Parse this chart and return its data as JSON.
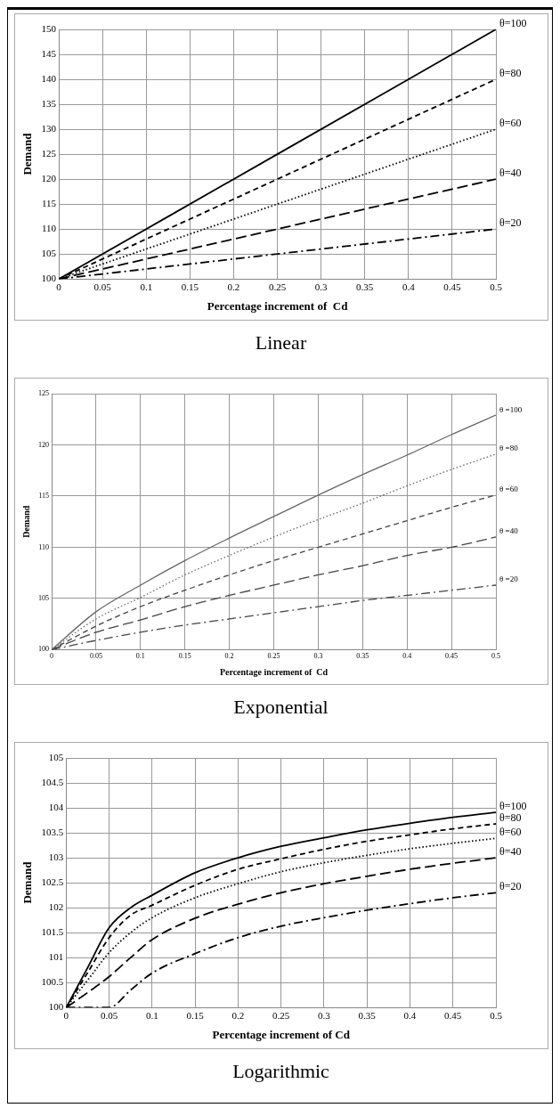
{
  "chart_data": [
    {
      "type": "line",
      "title": "Linear",
      "xlabel": "Percentage increment of  Cd",
      "ylabel": "Demand",
      "x": [
        0,
        0.25,
        0.5
      ],
      "xlim": [
        0,
        0.5
      ],
      "xticks": [
        0,
        0.05,
        0.1,
        0.15,
        0.2,
        0.25,
        0.3,
        0.35,
        0.4,
        0.45,
        0.5
      ],
      "ylim": [
        100,
        150
      ],
      "yticks": [
        100,
        105,
        110,
        115,
        120,
        125,
        130,
        135,
        140,
        145,
        150
      ],
      "grid": true,
      "legend": false,
      "series": [
        {
          "name": "θ=100",
          "color": "#000000",
          "line_style": "solid",
          "values": [
            100,
            125,
            150
          ]
        },
        {
          "name": "θ=80",
          "color": "#000000",
          "line_style": "dashed",
          "values": [
            100,
            120,
            140
          ]
        },
        {
          "name": "θ=60",
          "color": "#000000",
          "line_style": "dotted",
          "values": [
            100,
            115,
            130
          ]
        },
        {
          "name": "θ=40",
          "color": "#000000",
          "line_style": "dashed",
          "values": [
            100,
            110,
            120
          ]
        },
        {
          "name": "θ=20",
          "color": "#000000",
          "line_style": "dashdot",
          "values": [
            100,
            105,
            110
          ]
        }
      ]
    },
    {
      "type": "line",
      "title": "Exponential",
      "xlabel": "Percentage increment of  Cd",
      "ylabel": "Demand",
      "x": [
        0,
        0.05,
        0.1,
        0.15,
        0.2,
        0.25,
        0.3,
        0.35,
        0.4,
        0.45,
        0.5
      ],
      "xlim": [
        0,
        0.5
      ],
      "xticks": [
        0,
        0.05,
        0.1,
        0.15,
        0.2,
        0.25,
        0.3,
        0.35,
        0.4,
        0.45,
        0.5
      ],
      "ylim": [
        100,
        125
      ],
      "yticks": [
        100,
        105,
        110,
        115,
        120,
        125
      ],
      "grid": true,
      "legend": false,
      "series": [
        {
          "name": "θ =100",
          "color": "#666666",
          "line_style": "solid",
          "values": [
            100,
            103.7,
            106.3,
            108.7,
            110.9,
            113.0,
            115.1,
            117.1,
            119.0,
            121.0,
            122.9
          ]
        },
        {
          "name": "θ =80",
          "color": "#666666",
          "line_style": "dotted",
          "values": [
            100,
            103.0,
            105.1,
            107.3,
            109.2,
            111.0,
            112.7,
            114.3,
            116.0,
            117.6,
            119.1
          ]
        },
        {
          "name": "θ =60",
          "color": "#444444",
          "line_style": "dashed",
          "values": [
            100,
            102.3,
            104.2,
            105.8,
            107.3,
            108.7,
            110.0,
            111.3,
            112.6,
            113.9,
            115.1
          ]
        },
        {
          "name": "θ =40",
          "color": "#444444",
          "line_style": "dashed",
          "values": [
            100,
            101.7,
            102.9,
            104.2,
            105.3,
            106.3,
            107.3,
            108.2,
            109.2,
            110.0,
            111.0
          ]
        },
        {
          "name": "θ =20",
          "color": "#444444",
          "line_style": "dashdot",
          "values": [
            100,
            100.9,
            101.7,
            102.4,
            103.0,
            103.6,
            104.2,
            104.8,
            105.3,
            105.8,
            106.3
          ]
        }
      ]
    },
    {
      "type": "line",
      "title": "Logarithmic",
      "xlabel": "Percentage increment of Cd",
      "ylabel": "Demand",
      "x": [
        0,
        0.025,
        0.05,
        0.075,
        0.1,
        0.15,
        0.2,
        0.25,
        0.3,
        0.35,
        0.4,
        0.45,
        0.5
      ],
      "xlim": [
        0,
        0.5
      ],
      "xticks": [
        0,
        0.05,
        0.1,
        0.15,
        0.2,
        0.25,
        0.3,
        0.35,
        0.4,
        0.45,
        0.5
      ],
      "ylim": [
        100,
        105
      ],
      "yticks": [
        100,
        100.5,
        101,
        101.5,
        102,
        102.5,
        103,
        103.5,
        104,
        104.5,
        105
      ],
      "grid": true,
      "legend": false,
      "series": [
        {
          "name": "θ=100",
          "color": "#000000",
          "line_style": "solid",
          "values": [
            100,
            100.8,
            101.6,
            102.0,
            102.25,
            102.7,
            103.0,
            103.23,
            103.4,
            103.56,
            103.69,
            103.81,
            103.91
          ]
        },
        {
          "name": "θ=80",
          "color": "#000000",
          "line_style": "dashed",
          "values": [
            100,
            100.7,
            101.4,
            101.85,
            102.05,
            102.45,
            102.77,
            102.98,
            103.17,
            103.33,
            103.46,
            103.58,
            103.68
          ]
        },
        {
          "name": "θ=60",
          "color": "#000000",
          "line_style": "dotted",
          "values": [
            100,
            100.55,
            101.1,
            101.5,
            101.8,
            102.2,
            102.48,
            102.72,
            102.9,
            103.05,
            103.18,
            103.29,
            103.39
          ]
        },
        {
          "name": "θ=40",
          "color": "#000000",
          "line_style": "dashed",
          "values": [
            100,
            100.3,
            100.62,
            101.0,
            101.36,
            101.79,
            102.07,
            102.3,
            102.48,
            102.63,
            102.77,
            102.89,
            103.0
          ]
        },
        {
          "name": "θ=20",
          "color": "#000000",
          "line_style": "dashdot",
          "values": [
            100,
            100,
            100,
            100.35,
            100.69,
            101.08,
            101.4,
            101.63,
            101.8,
            101.95,
            102.08,
            102.2,
            102.3
          ]
        }
      ]
    }
  ]
}
